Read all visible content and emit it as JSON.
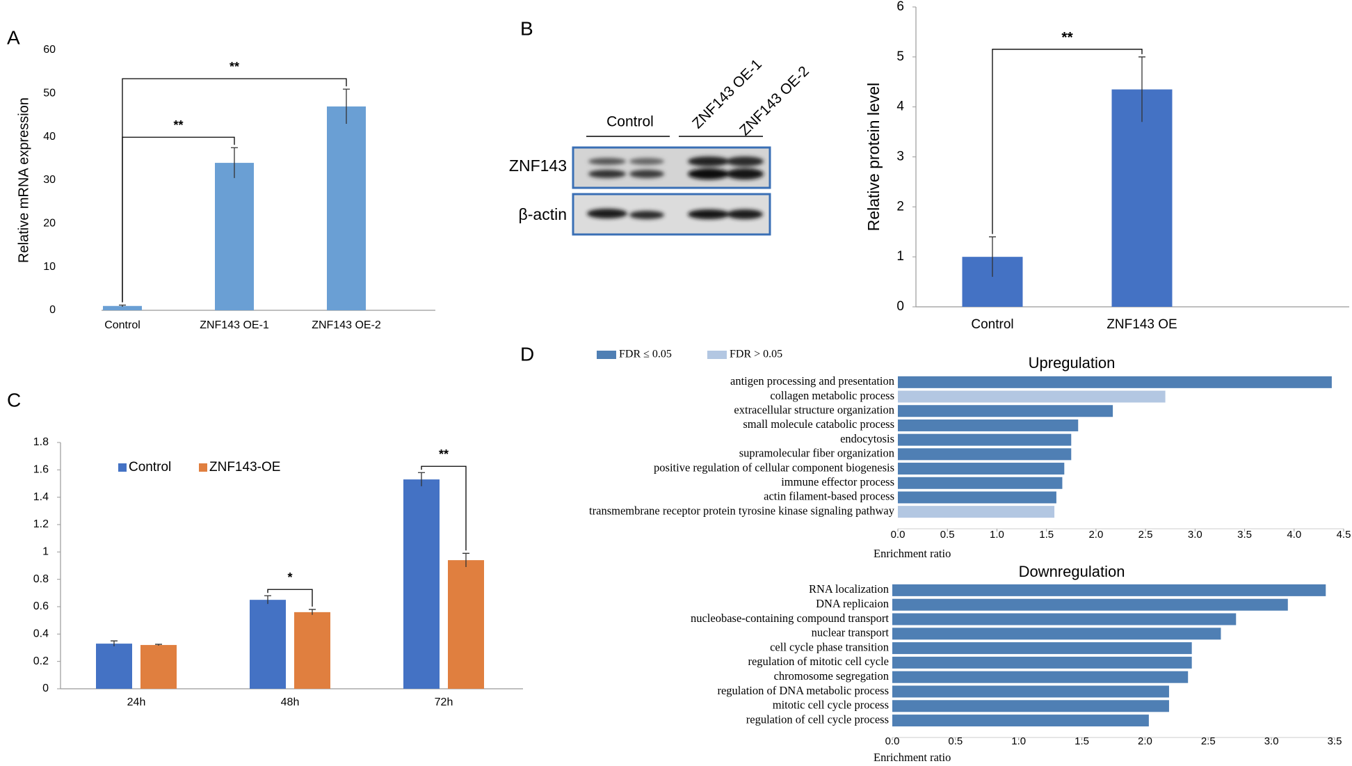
{
  "chart_data": [
    {
      "type": "bar",
      "panel": "A",
      "ylabel": "Relative mRNA expression",
      "categories": [
        "Control",
        "ZNF143 OE-1",
        "ZNF143 OE-2"
      ],
      "values": [
        1,
        34,
        47
      ],
      "errors": [
        0.2,
        3.5,
        4
      ],
      "color": "#6a9fd4",
      "ylim": [
        0,
        60
      ],
      "yticks": [
        0,
        10,
        20,
        30,
        40,
        50,
        60
      ],
      "annotations": [
        "**",
        "**"
      ]
    },
    {
      "type": "bar",
      "ylabel": "Relative protein level",
      "categories": [
        "Control",
        "ZNF143 OE"
      ],
      "values": [
        1,
        4.35
      ],
      "errors": [
        0.4,
        0.65
      ],
      "color": "#4472c4",
      "ylim": [
        0,
        6
      ],
      "yticks": [
        0,
        1,
        2,
        3,
        4,
        5,
        6
      ],
      "annotations": [
        "**"
      ]
    },
    {
      "type": "bar",
      "panel": "C",
      "categories": [
        "24h",
        "48h",
        "72h"
      ],
      "series": [
        {
          "name": "Control",
          "color": "#4472c4",
          "values": [
            0.33,
            0.65,
            1.53
          ],
          "errors": [
            0.02,
            0.03,
            0.05
          ]
        },
        {
          "name": "ZNF143-OE",
          "color": "#e07f3f",
          "values": [
            0.32,
            0.56,
            0.94
          ],
          "errors": [
            0.005,
            0.02,
            0.05
          ]
        }
      ],
      "ylim": [
        0,
        1.8
      ],
      "yticks": [
        0,
        0.2,
        0.4,
        0.6,
        0.8,
        1,
        1.2,
        1.4,
        1.6,
        1.8
      ],
      "annotations": [
        "*",
        "**"
      ]
    },
    {
      "type": "barh",
      "panel": "D",
      "title": "Upregulation",
      "xlabel": "Enrichment ratio",
      "legend": [
        {
          "name": "FDR ≤ 0.05",
          "color": "#4f7fb4"
        },
        {
          "name": "FDR > 0.05",
          "color": "#b3c7e2"
        }
      ],
      "categories": [
        "antigen processing and presentation",
        "collagen metabolic process",
        "extracellular structure organization",
        "small molecule catabolic process",
        "endocytosis",
        "supramolecular fiber organization",
        "positive regulation of cellular component biogenesis",
        "immune effector process",
        "actin filament-based process",
        "transmembrane receptor protein tyrosine kinase signaling pathway"
      ],
      "values": [
        4.38,
        2.7,
        2.17,
        1.82,
        1.75,
        1.75,
        1.68,
        1.66,
        1.6,
        1.58
      ],
      "colors": [
        "#4f7fb4",
        "#b3c7e2",
        "#4f7fb4",
        "#4f7fb4",
        "#4f7fb4",
        "#4f7fb4",
        "#4f7fb4",
        "#4f7fb4",
        "#4f7fb4",
        "#b3c7e2"
      ],
      "xlim": [
        0,
        4.5
      ],
      "xticks": [
        {
          "value": 0,
          "label": "0.0"
        },
        0.5,
        {
          "value": 1,
          "label": "1.0"
        },
        1.5,
        {
          "value": 2,
          "label": "2.0"
        },
        2.5,
        {
          "value": 3,
          "label": "3.0"
        },
        3.5,
        {
          "value": 4,
          "label": "4.0"
        },
        4.5
      ]
    },
    {
      "type": "barh",
      "title": "Downregulation",
      "xlabel": "Enrichment ratio",
      "categories": [
        "RNA localization",
        "DNA replicaion",
        "nucleobase-containing compound transport",
        "nuclear transport",
        "cell cycle phase transition",
        "regulation of mitotic cell cycle",
        "chromosome segregation",
        "regulation of DNA metabolic process",
        "mitotic cell cycle process",
        "regulation of cell cycle process"
      ],
      "values": [
        3.43,
        3.13,
        2.72,
        2.6,
        2.37,
        2.37,
        2.34,
        2.19,
        2.19,
        2.03
      ],
      "color": "#4f7fb4",
      "xlim": [
        0,
        3.5
      ],
      "xticks": [
        {
          "value": 0,
          "label": "0.0"
        },
        0.5,
        {
          "value": 1,
          "label": "1.0"
        },
        1.5,
        {
          "value": 2,
          "label": "2.0"
        },
        2.5,
        {
          "value": 3,
          "label": "3.0"
        },
        3.5
      ]
    }
  ],
  "blot": {
    "panel": "B",
    "groups": [
      "Control",
      "ZNF143 OE-1",
      "ZNF143 OE-2"
    ],
    "rows": [
      "ZNF143",
      "β-actin"
    ]
  }
}
